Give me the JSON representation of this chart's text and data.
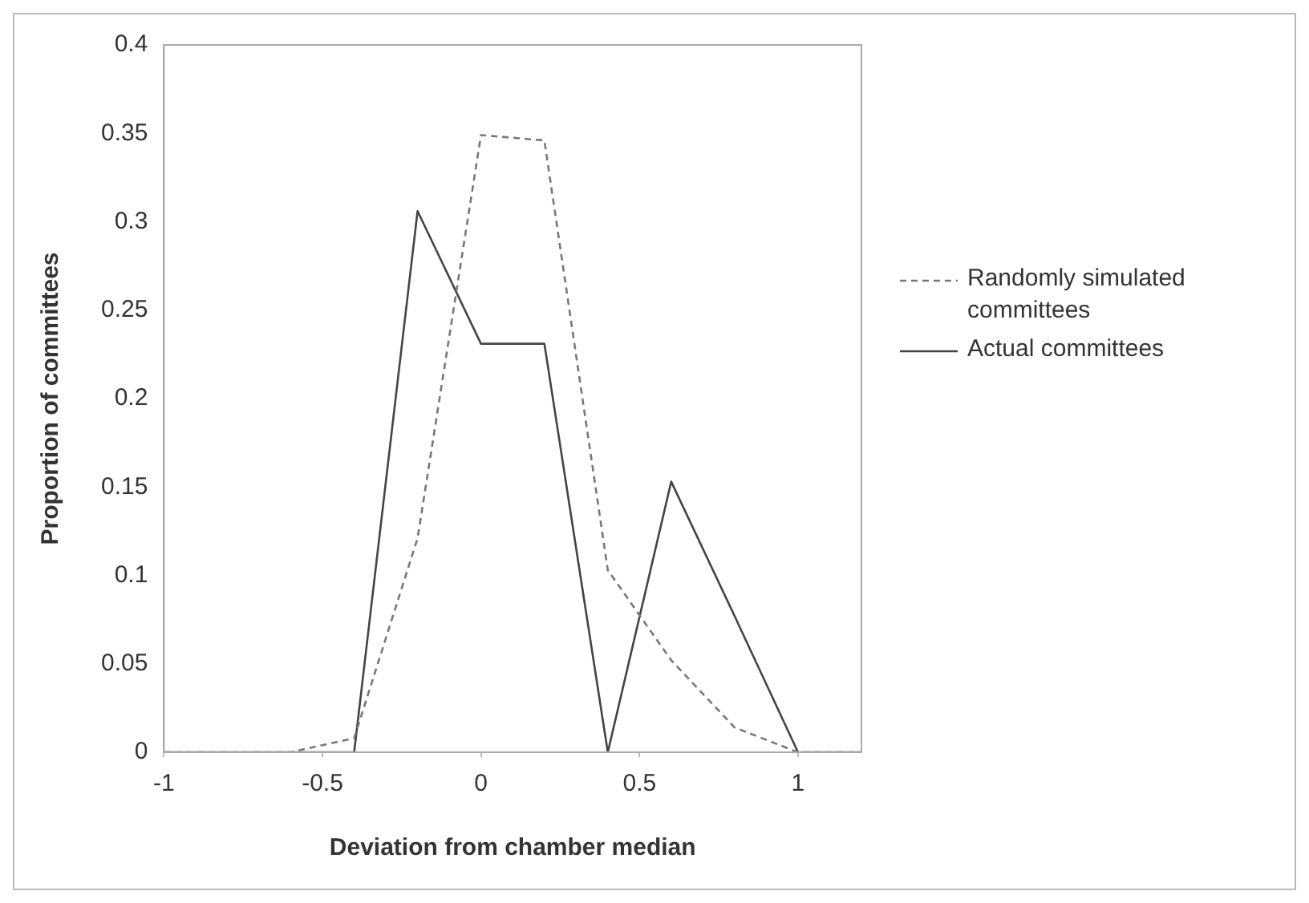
{
  "chart_data": {
    "type": "line",
    "xlabel": "Deviation from chamber median",
    "ylabel": "Proportion of committees",
    "x": [
      -1,
      -0.8,
      -0.6,
      -0.4,
      -0.2,
      0,
      0.2,
      0.4,
      0.6,
      0.8,
      1,
      1.2
    ],
    "series": [
      {
        "name": "Randomly simulated committees",
        "color": "#777777",
        "line_style": "dashed",
        "values": [
          0,
          0,
          0,
          0.008,
          0.121,
          0.349,
          0.346,
          0.103,
          0.052,
          0.014,
          0,
          0
        ]
      },
      {
        "name": "Actual committees",
        "color": "#444444",
        "line_style": "solid",
        "values": [
          0,
          0,
          0,
          0,
          0.306,
          0.231,
          0.231,
          0,
          0.153,
          0.077,
          0,
          0
        ]
      }
    ],
    "xlim": [
      -1,
      1.2
    ],
    "xticks": [
      -1,
      -0.5,
      0,
      0.5,
      1
    ],
    "ylim": [
      0,
      0.4
    ],
    "yticks": [
      0,
      0.05,
      0.1,
      0.15,
      0.2,
      0.25,
      0.3,
      0.35,
      0.4
    ],
    "grid": false,
    "legend": "right",
    "marker": "none"
  }
}
